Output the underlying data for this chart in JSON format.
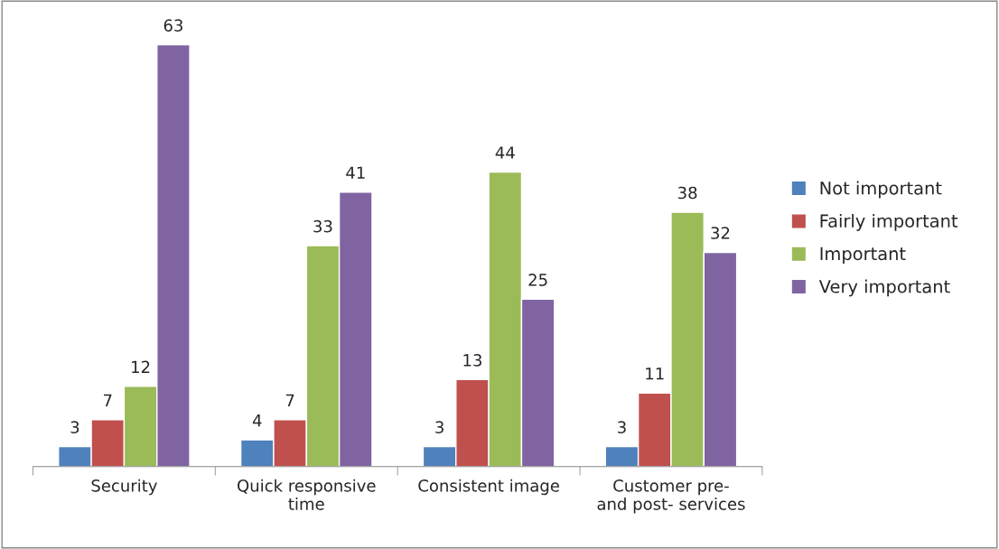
{
  "chart_data": {
    "type": "bar",
    "categories": [
      "Security",
      "Quick responsive\ntime",
      "Consistent image",
      "Customer pre-\nand post- services"
    ],
    "series": [
      {
        "name": "Not important",
        "color": "#4f81bd",
        "values": [
          3,
          4,
          3,
          3
        ]
      },
      {
        "name": "Fairly important",
        "color": "#c0504d",
        "values": [
          7,
          7,
          13,
          11
        ]
      },
      {
        "name": "Important",
        "color": "#9bbb59",
        "values": [
          12,
          33,
          44,
          38
        ]
      },
      {
        "name": "Very important",
        "color": "#8064a2",
        "values": [
          63,
          41,
          25,
          32
        ]
      }
    ],
    "data_labels": true,
    "legend": "right",
    "grid": false
  }
}
